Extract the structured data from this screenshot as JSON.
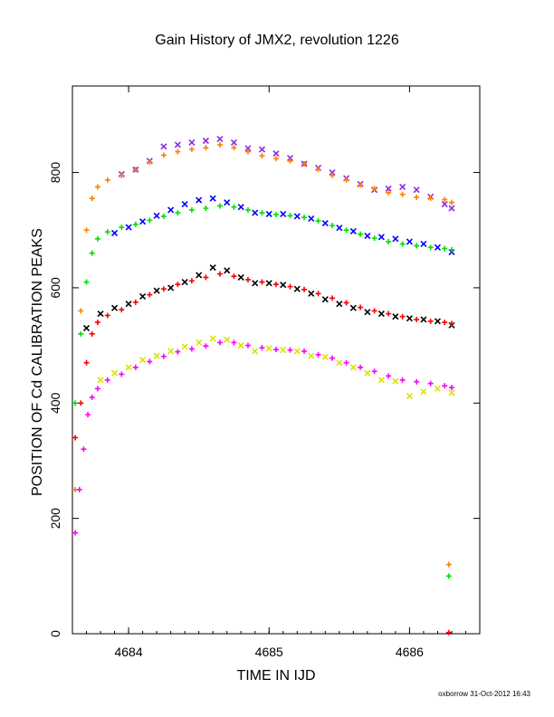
{
  "chart_data": {
    "type": "scatter",
    "title": "Gain History of JMX2, revolution 1226",
    "xlabel": "TIME IN IJD",
    "ylabel": "POSITION OF Cd CALIBRATION PEAKS",
    "xlim": [
      4683.6,
      4686.5
    ],
    "ylim": [
      0,
      950
    ],
    "xticks": [
      4684,
      4685,
      4686
    ],
    "yticks": [
      0,
      200,
      400,
      600,
      800
    ],
    "grid": false,
    "legend": "none",
    "series": [
      {
        "color": "#8a2be2",
        "marker": "x",
        "x": [
          4683.95,
          4684.05,
          4684.15,
          4684.25,
          4684.35,
          4684.45,
          4684.55,
          4684.65,
          4684.75,
          4684.85,
          4684.95,
          4685.05,
          4685.15,
          4685.25,
          4685.35,
          4685.45,
          4685.55,
          4685.65,
          4685.75,
          4685.85,
          4685.95,
          4686.05,
          4686.15,
          4686.25,
          4686.3
        ],
        "y": [
          797,
          805,
          820,
          845,
          848,
          852,
          855,
          858,
          852,
          842,
          840,
          833,
          825,
          815,
          808,
          800,
          790,
          780,
          770,
          772,
          775,
          770,
          758,
          745,
          738
        ]
      },
      {
        "color": "#ff8000",
        "marker": "+",
        "x": [
          4683.62,
          4683.66,
          4683.7,
          4683.74,
          4683.78,
          4683.85,
          4683.95,
          4684.05,
          4684.15,
          4684.25,
          4684.35,
          4684.45,
          4684.55,
          4684.65,
          4684.75,
          4684.85,
          4684.95,
          4685.05,
          4685.15,
          4685.25,
          4685.35,
          4685.45,
          4685.55,
          4685.65,
          4685.75,
          4685.85,
          4685.95,
          4686.05,
          4686.15,
          4686.25,
          4686.3
        ],
        "y": [
          250,
          560,
          700,
          755,
          775,
          787,
          795,
          805,
          818,
          830,
          836,
          840,
          843,
          848,
          843,
          836,
          829,
          824,
          820,
          815,
          805,
          795,
          787,
          778,
          772,
          765,
          762,
          757,
          755,
          753,
          748
        ]
      },
      {
        "color": "#0000ff",
        "marker": "x",
        "x": [
          4683.9,
          4684.0,
          4684.1,
          4684.2,
          4684.3,
          4684.4,
          4684.5,
          4684.6,
          4684.7,
          4684.8,
          4684.9,
          4685.0,
          4685.1,
          4685.2,
          4685.3,
          4685.4,
          4685.5,
          4685.6,
          4685.7,
          4685.8,
          4685.9,
          4686.0,
          4686.1,
          4686.2,
          4686.3
        ],
        "y": [
          695,
          705,
          715,
          725,
          735,
          745,
          752,
          755,
          748,
          740,
          730,
          728,
          728,
          724,
          720,
          712,
          704,
          698,
          690,
          688,
          685,
          680,
          676,
          670,
          662
        ]
      },
      {
        "color": "#00e000",
        "marker": "+",
        "x": [
          4683.62,
          4683.66,
          4683.7,
          4683.74,
          4683.78,
          4683.85,
          4683.95,
          4684.05,
          4684.15,
          4684.25,
          4684.35,
          4684.45,
          4684.55,
          4684.65,
          4684.75,
          4684.85,
          4684.95,
          4685.05,
          4685.15,
          4685.25,
          4685.35,
          4685.45,
          4685.55,
          4685.65,
          4685.75,
          4685.85,
          4685.95,
          4686.05,
          4686.15,
          4686.25,
          4686.3
        ],
        "y": [
          400,
          520,
          610,
          660,
          685,
          697,
          705,
          710,
          717,
          724,
          730,
          735,
          738,
          742,
          740,
          735,
          730,
          727,
          725,
          722,
          716,
          708,
          700,
          693,
          686,
          680,
          676,
          673,
          670,
          668,
          666
        ]
      },
      {
        "color": "#000000",
        "marker": "x",
        "x": [
          4683.7,
          4683.8,
          4683.9,
          4684.0,
          4684.1,
          4684.2,
          4684.3,
          4684.4,
          4684.5,
          4684.6,
          4684.7,
          4684.8,
          4684.9,
          4685.0,
          4685.1,
          4685.2,
          4685.3,
          4685.4,
          4685.5,
          4685.6,
          4685.7,
          4685.8,
          4685.9,
          4686.0,
          4686.1,
          4686.2,
          4686.3
        ],
        "y": [
          530,
          555,
          565,
          572,
          585,
          595,
          600,
          610,
          622,
          635,
          630,
          618,
          608,
          608,
          605,
          598,
          590,
          580,
          572,
          565,
          558,
          555,
          550,
          547,
          545,
          542,
          535
        ]
      },
      {
        "color": "#ff0000",
        "marker": "+",
        "x": [
          4683.62,
          4683.66,
          4683.7,
          4683.74,
          4683.78,
          4683.85,
          4683.95,
          4684.05,
          4684.15,
          4684.25,
          4684.35,
          4684.45,
          4684.55,
          4684.65,
          4684.75,
          4684.85,
          4684.95,
          4685.05,
          4685.15,
          4685.25,
          4685.35,
          4685.45,
          4685.55,
          4685.65,
          4685.75,
          4685.85,
          4685.95,
          4686.05,
          4686.15,
          4686.25,
          4686.3
        ],
        "y": [
          340,
          400,
          470,
          520,
          540,
          552,
          562,
          575,
          588,
          598,
          606,
          612,
          618,
          624,
          620,
          614,
          610,
          606,
          602,
          597,
          590,
          582,
          574,
          566,
          560,
          555,
          550,
          545,
          542,
          540,
          538
        ]
      },
      {
        "color": "#e0e000",
        "marker": "x",
        "x": [
          4683.8,
          4683.9,
          4684.0,
          4684.1,
          4684.2,
          4684.3,
          4684.4,
          4684.5,
          4684.6,
          4684.7,
          4684.8,
          4684.9,
          4685.0,
          4685.1,
          4685.2,
          4685.3,
          4685.4,
          4685.5,
          4685.6,
          4685.7,
          4685.8,
          4685.9,
          4686.0,
          4686.1,
          4686.2,
          4686.3
        ],
        "y": [
          440,
          452,
          462,
          475,
          482,
          490,
          498,
          505,
          512,
          510,
          500,
          490,
          495,
          492,
          490,
          482,
          480,
          470,
          462,
          452,
          440,
          438,
          412,
          420,
          425,
          418
        ]
      },
      {
        "color": "#ff00ff",
        "marker": "+",
        "x": [
          4683.62,
          4683.65,
          4683.68,
          4683.71,
          4683.74,
          4683.78,
          4683.85,
          4683.95,
          4684.05,
          4684.15,
          4684.25,
          4684.35,
          4684.45,
          4684.55,
          4684.65,
          4684.75,
          4684.85,
          4684.95,
          4685.05,
          4685.15,
          4685.25,
          4685.35,
          4685.45,
          4685.55,
          4685.65,
          4685.75,
          4685.85,
          4685.95,
          4686.05,
          4686.15,
          4686.25,
          4686.3
        ],
        "y": [
          175,
          250,
          320,
          380,
          410,
          425,
          440,
          450,
          462,
          472,
          481,
          489,
          494,
          499,
          505,
          505,
          500,
          496,
          493,
          492,
          490,
          484,
          478,
          470,
          462,
          455,
          447,
          440,
          437,
          434,
          430,
          427
        ]
      },
      {
        "color": "#ff8000",
        "marker": "+",
        "x": [
          4686.28
        ],
        "y": [
          120
        ]
      },
      {
        "color": "#00e000",
        "marker": "+",
        "x": [
          4686.28
        ],
        "y": [
          100
        ]
      },
      {
        "color": "#ff0000",
        "marker": "+",
        "x": [
          4686.28
        ],
        "y": [
          2
        ]
      }
    ],
    "footer": "oxborrow 31-Oct-2012 16:43"
  }
}
